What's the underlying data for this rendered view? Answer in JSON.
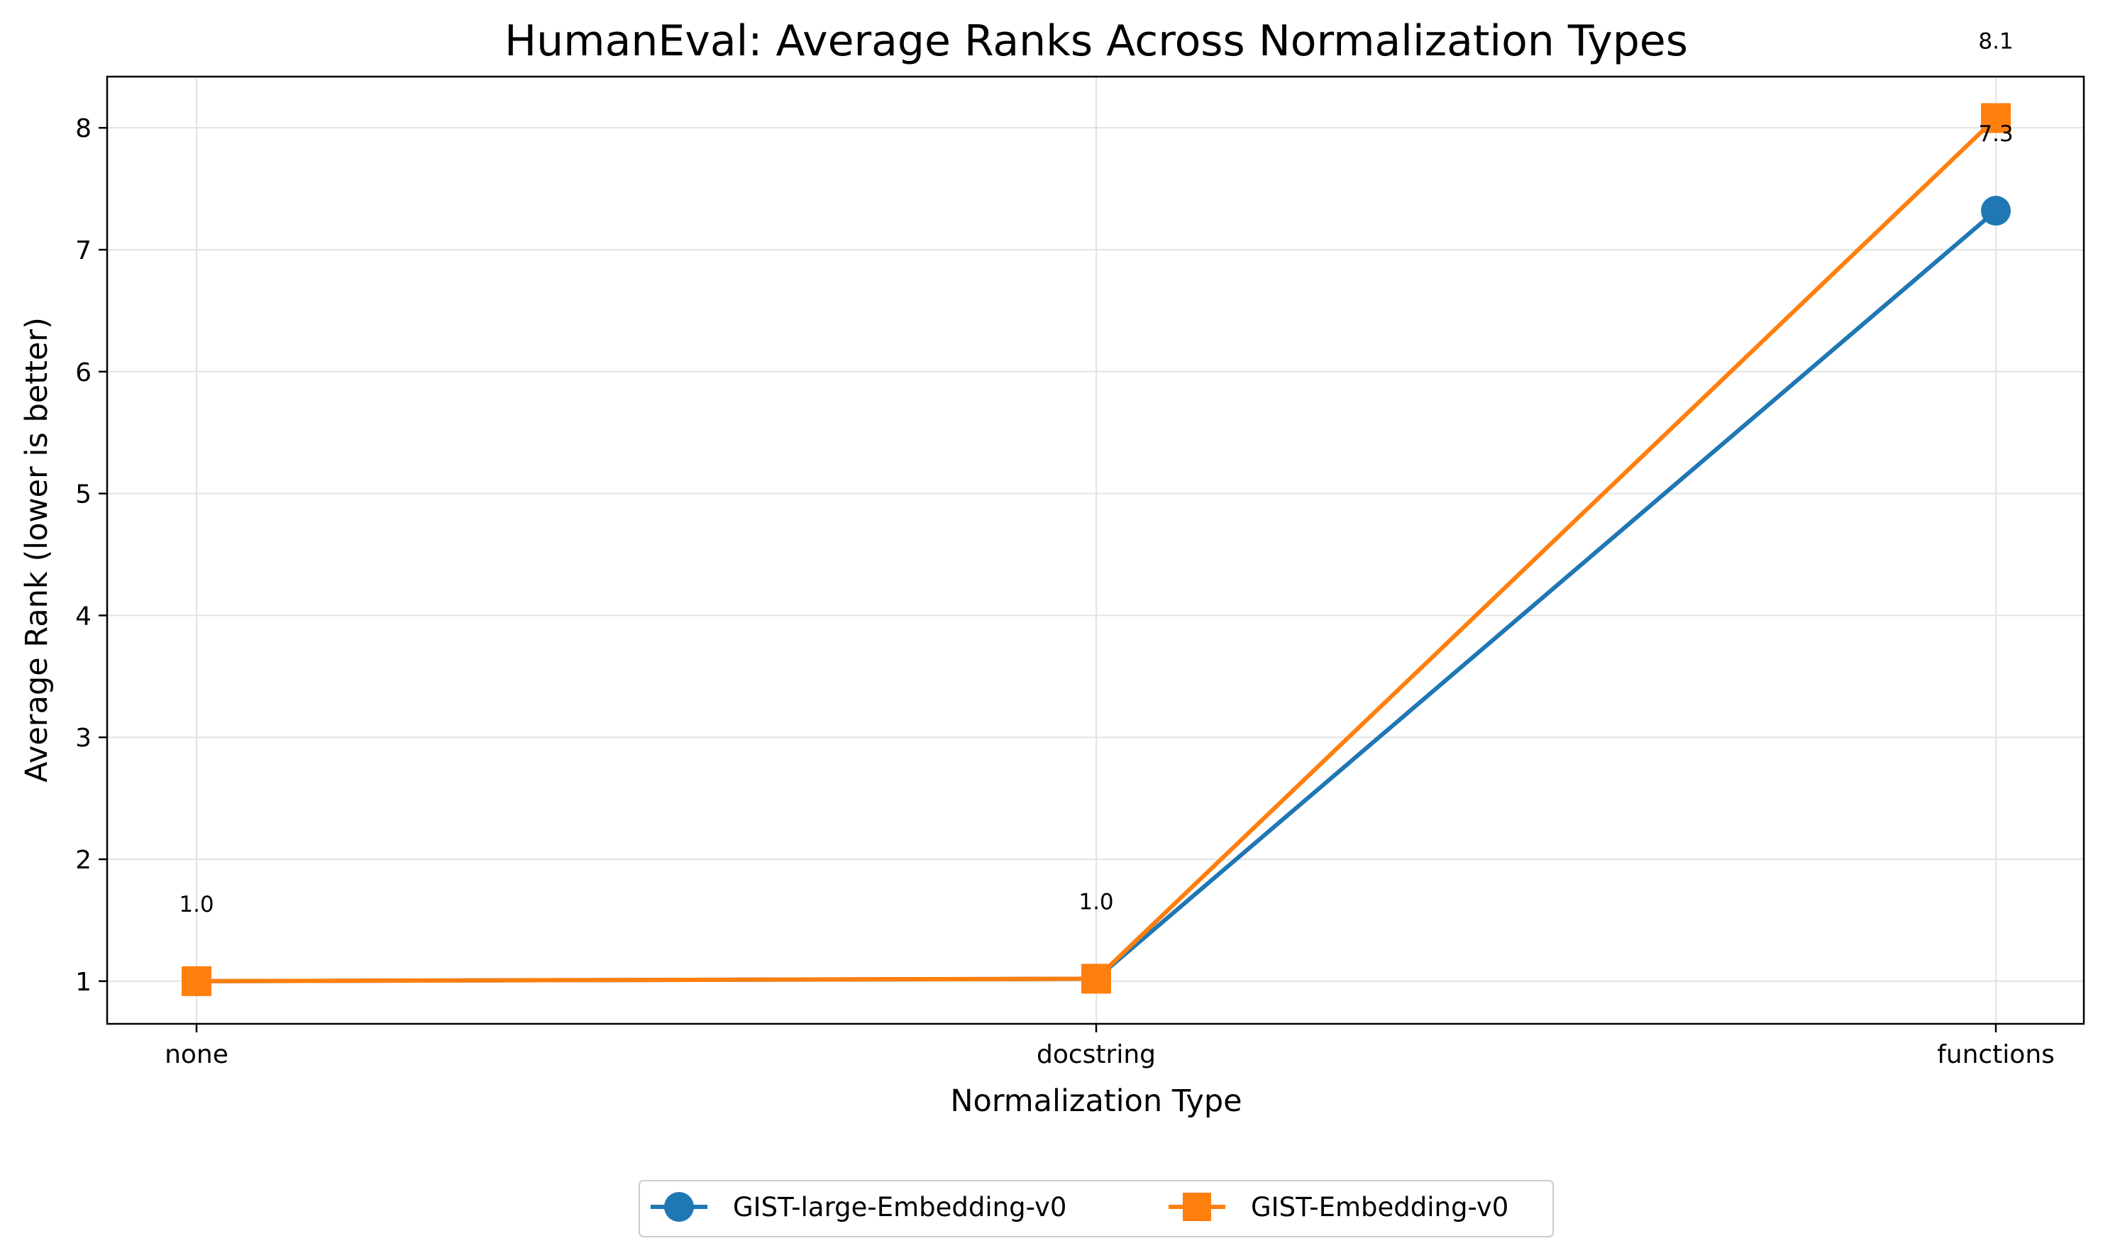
{
  "chart_data": {
    "type": "line",
    "title": "HumanEval: Average Ranks Across Normalization Types",
    "xlabel": "Normalization Type",
    "ylabel": "Average Rank (lower is better)",
    "categories": [
      "none",
      "docstring",
      "functions"
    ],
    "ylim": [
      0.65,
      8.42
    ],
    "yticks": [
      1,
      2,
      3,
      4,
      5,
      6,
      7,
      8
    ],
    "grid": true,
    "legend_placement": "bottom-center",
    "series": [
      {
        "name": "GIST-large-Embedding-v0",
        "values": [
          1.0,
          1.02,
          7.32
        ],
        "data_labels": [
          "",
          "",
          "7.3"
        ],
        "marker": "circle",
        "color": "#1f77b4"
      },
      {
        "name": "GIST-Embedding-v0",
        "values": [
          1.0,
          1.02,
          8.08
        ],
        "data_labels": [
          "1.0",
          "1.0",
          "8.1"
        ],
        "marker": "square",
        "color": "#ff7f0e"
      }
    ]
  }
}
